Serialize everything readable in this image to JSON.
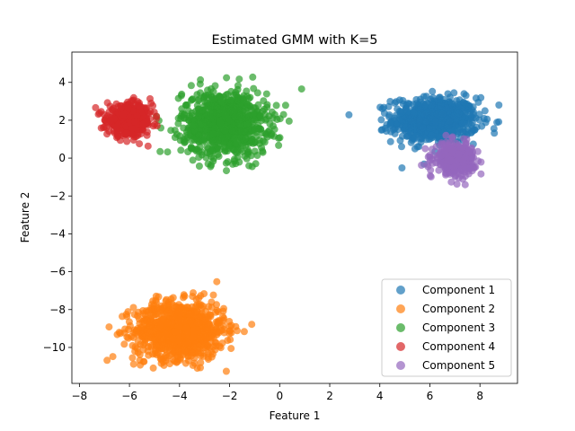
{
  "chart_data": {
    "type": "scatter",
    "title": "Estimated GMM with K=5",
    "xlabel": "Feature 1",
    "ylabel": "Feature 2",
    "xlim": [
      -8.3,
      9.5
    ],
    "ylim": [
      -11.9,
      5.6
    ],
    "xticks": [
      -8,
      -6,
      -4,
      -2,
      0,
      2,
      4,
      6,
      8
    ],
    "yticks": [
      -10,
      -8,
      -6,
      -4,
      -2,
      0,
      2,
      4
    ],
    "grid": false,
    "legend_position": "lower right",
    "marker_alpha": 0.7,
    "series": [
      {
        "name": "Component 1",
        "color": "#1f77b4",
        "center": [
          6.2,
          2.0
        ],
        "spread": [
          0.85,
          0.6
        ],
        "approx_points": 700
      },
      {
        "name": "Component 2",
        "color": "#ff7f0e",
        "center": [
          -4.0,
          -9.1
        ],
        "spread": [
          0.9,
          0.75
        ],
        "approx_points": 1000
      },
      {
        "name": "Component 3",
        "color": "#2ca02c",
        "center": [
          -2.2,
          1.8
        ],
        "spread": [
          0.85,
          0.85
        ],
        "approx_points": 900
      },
      {
        "name": "Component 4",
        "color": "#d62728",
        "center": [
          -6.0,
          2.0
        ],
        "spread": [
          0.45,
          0.4
        ],
        "approx_points": 500
      },
      {
        "name": "Component 5",
        "color": "#9467bd",
        "center": [
          7.0,
          0.0
        ],
        "spread": [
          0.4,
          0.4
        ],
        "approx_points": 350
      }
    ]
  }
}
